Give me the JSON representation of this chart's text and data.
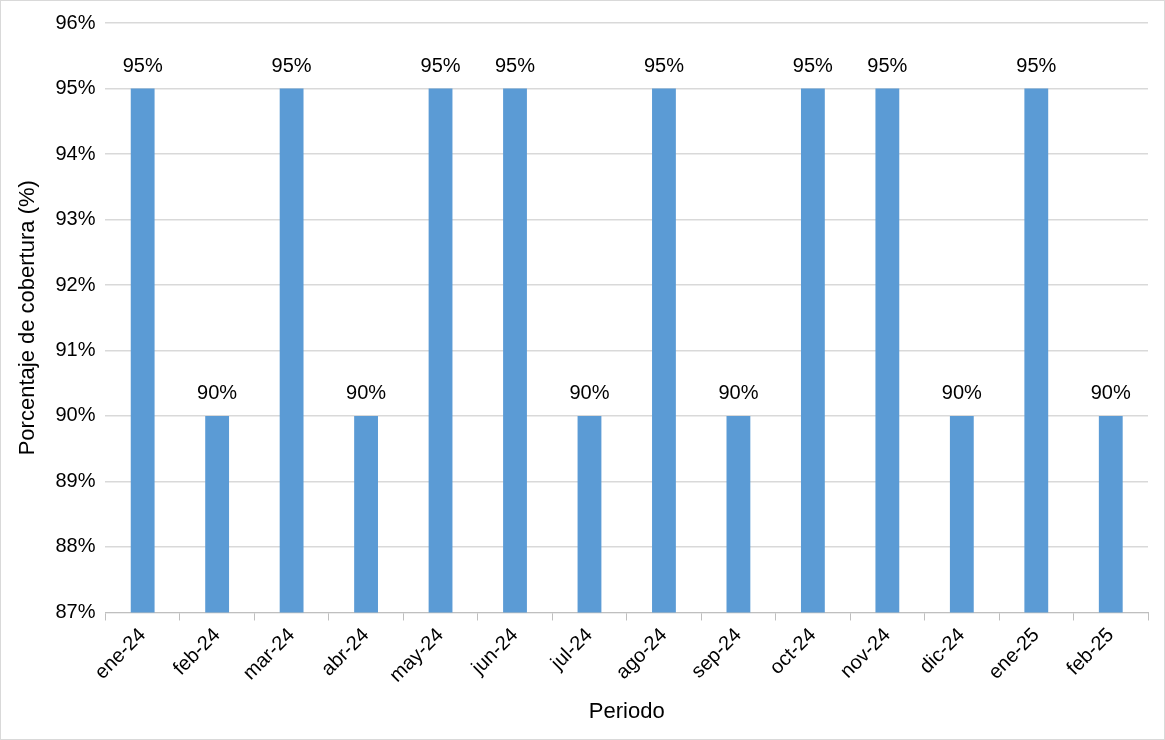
{
  "chart_data": {
    "type": "bar",
    "xlabel": "Periodo",
    "ylabel": "Porcentaje de cobertura (%)",
    "categories": [
      "ene-24",
      "feb-24",
      "mar-24",
      "abr-24",
      "may-24",
      "jun-24",
      "jul-24",
      "ago-24",
      "sep-24",
      "oct-24",
      "nov-24",
      "dic-24",
      "ene-25",
      "feb-25"
    ],
    "values": [
      95,
      90,
      95,
      90,
      95,
      95,
      90,
      95,
      90,
      95,
      95,
      90,
      95,
      90
    ],
    "value_labels": [
      "95%",
      "90%",
      "95%",
      "90%",
      "95%",
      "95%",
      "90%",
      "95%",
      "90%",
      "95%",
      "95%",
      "90%",
      "95%",
      "90%"
    ],
    "color": "#5b9bd5",
    "ylim": [
      87,
      96
    ],
    "yticks": [
      {
        "value": 87,
        "label": "87%"
      },
      {
        "value": 88,
        "label": "88%"
      },
      {
        "value": 89,
        "label": "89%"
      },
      {
        "value": 90,
        "label": "90%"
      },
      {
        "value": 91,
        "label": "91%"
      },
      {
        "value": 92,
        "label": "92%"
      },
      {
        "value": 93,
        "label": "93%"
      },
      {
        "value": 94,
        "label": "94%"
      },
      {
        "value": 95,
        "label": "95%"
      },
      {
        "value": 96,
        "label": "96%"
      }
    ],
    "grid": "y",
    "legend": false
  }
}
